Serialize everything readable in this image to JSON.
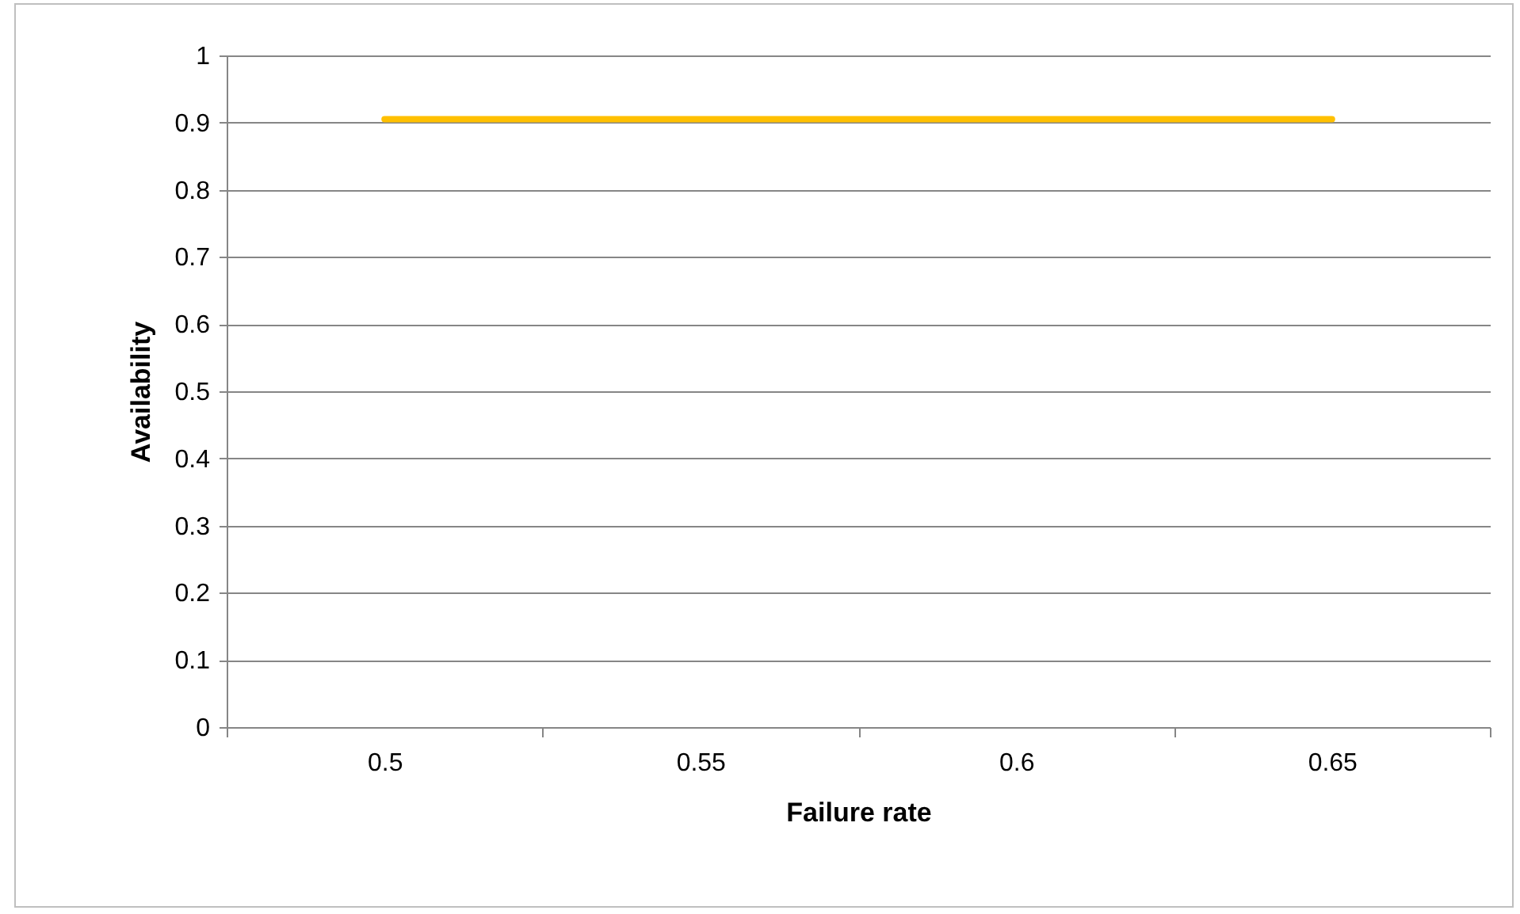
{
  "chart_data": {
    "type": "line",
    "xlabel": "Failure rate",
    "ylabel": "Availability",
    "categories": [
      "0.5",
      "0.55",
      "0.6",
      "0.65"
    ],
    "series": [
      {
        "color": "#ffc000",
        "values": [
          0.905,
          0.905,
          0.905,
          0.905
        ]
      }
    ],
    "ylim": [
      0,
      1
    ],
    "yticks": [
      0,
      0.1,
      0.2,
      0.3,
      0.4,
      0.5,
      0.6,
      0.7,
      0.8,
      0.9,
      1
    ],
    "grid": "y",
    "marker": "none",
    "line_style": "solid"
  }
}
